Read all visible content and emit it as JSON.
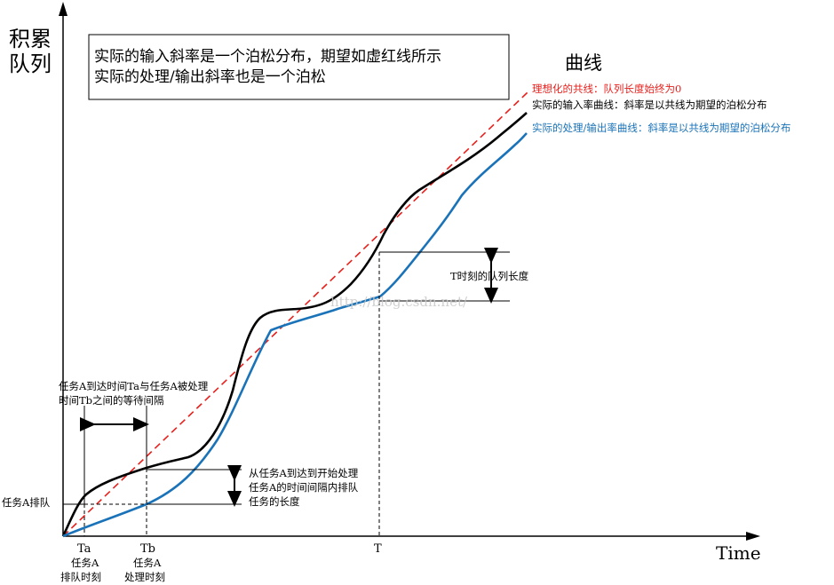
{
  "axes": {
    "y_label_line1": "积累",
    "y_label_line2": "队列",
    "x_label": "Time"
  },
  "note_box": {
    "line1": "实际的输入斜率是一个泊松分布，期望如虚红线所示",
    "line2": "实际的处理/输出斜率也是一个泊松"
  },
  "curves_title": "曲线",
  "legend": {
    "ideal": "理想化的共线：队列长度始终为0",
    "input": "实际的输入率曲线：斜率是以共线为期望的泊松分布",
    "output": "实际的处理/输出率曲线：斜率是以共线为期望的泊松分布",
    "ideal_color": "#e8201c",
    "input_color": "#000000",
    "output_color": "#1a73b8"
  },
  "annotations": {
    "wait_line1": "任务A到达时间Ta与任务A被处理",
    "wait_line2": "时间Tb之间的等待间隔",
    "queue_line1": "从任务A到达到开始处理",
    "queue_line2": "任务A的时间间隔内排队",
    "queue_line3": "任务的长度",
    "t_queue": "T时刻的队列长度",
    "queue_a": "任务A排队"
  },
  "ticks": {
    "ta": "Ta",
    "ta_sub1": "任务A",
    "ta_sub2": "排队时刻",
    "tb": "Tb",
    "tb_sub1": "任务A",
    "tb_sub2": "处理时刻",
    "t": "T"
  },
  "watermark": "http://blog.csdn.net/"
}
